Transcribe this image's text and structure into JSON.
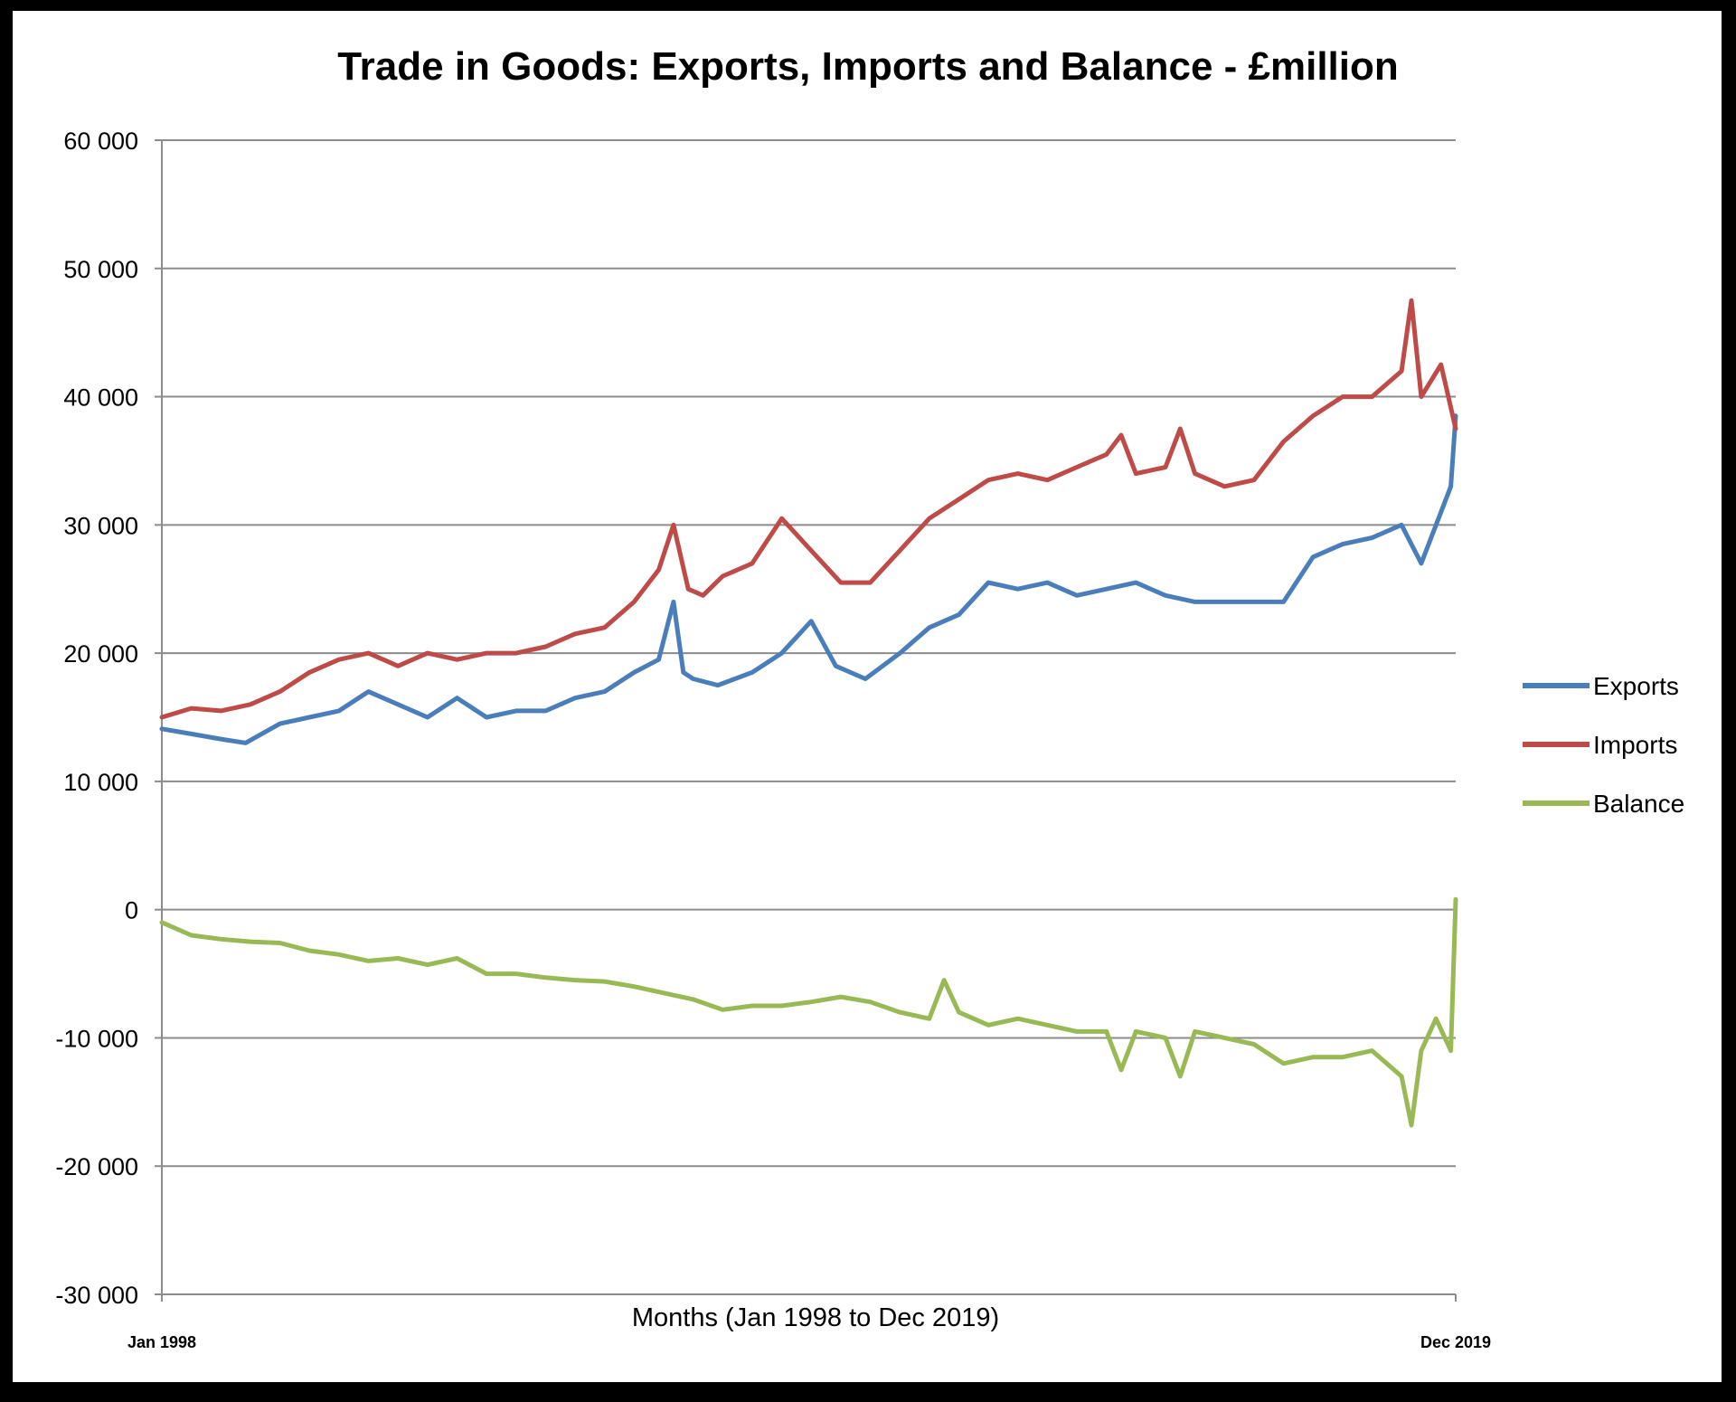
{
  "chart_data": {
    "type": "line",
    "title": "Trade in Goods: Exports, Imports and Balance - £million",
    "xlabel": "Months (Jan 1998 to Dec 2019)",
    "ylabel": "",
    "x_start_label": "Jan 1998",
    "x_end_label": "Dec 2019",
    "ylim": [
      -30000,
      60000
    ],
    "yticks": [
      -30000,
      -20000,
      -10000,
      0,
      10000,
      20000,
      30000,
      40000,
      50000,
      60000
    ],
    "ytick_labels": [
      "-30 000",
      "-20 000",
      "-10 000",
      "0",
      "10 000",
      "20 000",
      "30 000",
      "40 000",
      "50 000",
      "60 000"
    ],
    "grid": true,
    "legend": "right",
    "series": [
      {
        "name": "Exports",
        "color": "#4a7ebb",
        "points": [
          [
            "1998-01",
            14100
          ],
          [
            "1998-07",
            13700
          ],
          [
            "1999-01",
            13300
          ],
          [
            "1999-06",
            13000
          ],
          [
            "2000-01",
            14500
          ],
          [
            "2000-07",
            15000
          ],
          [
            "2001-01",
            15500
          ],
          [
            "2001-07",
            17000
          ],
          [
            "2002-01",
            16000
          ],
          [
            "2002-07",
            15000
          ],
          [
            "2003-01",
            16500
          ],
          [
            "2003-07",
            15000
          ],
          [
            "2004-01",
            15500
          ],
          [
            "2004-07",
            15500
          ],
          [
            "2005-01",
            16500
          ],
          [
            "2005-07",
            17000
          ],
          [
            "2006-01",
            18500
          ],
          [
            "2006-06",
            19500
          ],
          [
            "2006-09",
            24000
          ],
          [
            "2006-11",
            18500
          ],
          [
            "2007-01",
            18000
          ],
          [
            "2007-06",
            17500
          ],
          [
            "2008-01",
            18500
          ],
          [
            "2008-07",
            20000
          ],
          [
            "2009-01",
            22500
          ],
          [
            "2009-06",
            19000
          ],
          [
            "2009-12",
            18000
          ],
          [
            "2010-07",
            20000
          ],
          [
            "2011-01",
            22000
          ],
          [
            "2011-07",
            23000
          ],
          [
            "2012-01",
            25500
          ],
          [
            "2012-07",
            25000
          ],
          [
            "2013-01",
            25500
          ],
          [
            "2013-07",
            24500
          ],
          [
            "2014-01",
            25000
          ],
          [
            "2014-07",
            25500
          ],
          [
            "2015-01",
            24500
          ],
          [
            "2015-07",
            24000
          ],
          [
            "2016-01",
            24000
          ],
          [
            "2016-07",
            24000
          ],
          [
            "2017-01",
            24000
          ],
          [
            "2017-07",
            27500
          ],
          [
            "2018-01",
            28500
          ],
          [
            "2018-07",
            29000
          ],
          [
            "2019-01",
            30000
          ],
          [
            "2019-03",
            28500
          ],
          [
            "2019-05",
            27000
          ],
          [
            "2019-09",
            31000
          ],
          [
            "2019-11",
            33000
          ],
          [
            "2019-12",
            38500
          ]
        ]
      },
      {
        "name": "Imports",
        "color": "#be4b48",
        "points": [
          [
            "1998-01",
            15000
          ],
          [
            "1998-07",
            15700
          ],
          [
            "1999-01",
            15500
          ],
          [
            "1999-07",
            16000
          ],
          [
            "2000-01",
            17000
          ],
          [
            "2000-07",
            18500
          ],
          [
            "2001-01",
            19500
          ],
          [
            "2001-07",
            20000
          ],
          [
            "2002-01",
            19000
          ],
          [
            "2002-07",
            20000
          ],
          [
            "2003-01",
            19500
          ],
          [
            "2003-07",
            20000
          ],
          [
            "2004-01",
            20000
          ],
          [
            "2004-07",
            20500
          ],
          [
            "2005-01",
            21500
          ],
          [
            "2005-07",
            22000
          ],
          [
            "2006-01",
            24000
          ],
          [
            "2006-06",
            26500
          ],
          [
            "2006-09",
            30000
          ],
          [
            "2006-12",
            25000
          ],
          [
            "2007-03",
            24500
          ],
          [
            "2007-07",
            26000
          ],
          [
            "2008-01",
            27000
          ],
          [
            "2008-07",
            30500
          ],
          [
            "2009-01",
            28000
          ],
          [
            "2009-07",
            25500
          ],
          [
            "2010-01",
            25500
          ],
          [
            "2010-07",
            28000
          ],
          [
            "2011-01",
            30500
          ],
          [
            "2011-07",
            32000
          ],
          [
            "2012-01",
            33500
          ],
          [
            "2012-07",
            34000
          ],
          [
            "2013-01",
            33500
          ],
          [
            "2013-07",
            34500
          ],
          [
            "2014-01",
            35500
          ],
          [
            "2014-04",
            37000
          ],
          [
            "2014-07",
            34000
          ],
          [
            "2015-01",
            34500
          ],
          [
            "2015-04",
            37500
          ],
          [
            "2015-07",
            34000
          ],
          [
            "2016-01",
            33000
          ],
          [
            "2016-07",
            33500
          ],
          [
            "2017-01",
            36500
          ],
          [
            "2017-07",
            38500
          ],
          [
            "2018-01",
            40000
          ],
          [
            "2018-07",
            40000
          ],
          [
            "2019-01",
            42000
          ],
          [
            "2019-03",
            47500
          ],
          [
            "2019-05",
            40000
          ],
          [
            "2019-09",
            42500
          ],
          [
            "2019-12",
            37500
          ]
        ]
      },
      {
        "name": "Balance",
        "color": "#98b954",
        "points": [
          [
            "1998-01",
            -1000
          ],
          [
            "1998-07",
            -2000
          ],
          [
            "1999-01",
            -2300
          ],
          [
            "1999-07",
            -2500
          ],
          [
            "2000-01",
            -2600
          ],
          [
            "2000-07",
            -3200
          ],
          [
            "2001-01",
            -3500
          ],
          [
            "2001-07",
            -4000
          ],
          [
            "2002-01",
            -3800
          ],
          [
            "2002-07",
            -4300
          ],
          [
            "2003-01",
            -3800
          ],
          [
            "2003-07",
            -5000
          ],
          [
            "2004-01",
            -5000
          ],
          [
            "2004-07",
            -5300
          ],
          [
            "2005-01",
            -5500
          ],
          [
            "2005-07",
            -5600
          ],
          [
            "2006-01",
            -6000
          ],
          [
            "2006-07",
            -6500
          ],
          [
            "2007-01",
            -7000
          ],
          [
            "2007-07",
            -7800
          ],
          [
            "2008-01",
            -7500
          ],
          [
            "2008-07",
            -7500
          ],
          [
            "2009-01",
            -7200
          ],
          [
            "2009-07",
            -6800
          ],
          [
            "2010-01",
            -7200
          ],
          [
            "2010-07",
            -8000
          ],
          [
            "2011-01",
            -8500
          ],
          [
            "2011-04",
            -5500
          ],
          [
            "2011-07",
            -8000
          ],
          [
            "2012-01",
            -9000
          ],
          [
            "2012-07",
            -8500
          ],
          [
            "2013-01",
            -9000
          ],
          [
            "2013-07",
            -9500
          ],
          [
            "2014-01",
            -9500
          ],
          [
            "2014-04",
            -12500
          ],
          [
            "2014-07",
            -9500
          ],
          [
            "2015-01",
            -10000
          ],
          [
            "2015-04",
            -13000
          ],
          [
            "2015-07",
            -9500
          ],
          [
            "2016-01",
            -10000
          ],
          [
            "2016-07",
            -10500
          ],
          [
            "2017-01",
            -12000
          ],
          [
            "2017-07",
            -11500
          ],
          [
            "2018-01",
            -11500
          ],
          [
            "2018-07",
            -11000
          ],
          [
            "2019-01",
            -13000
          ],
          [
            "2019-03",
            -16800
          ],
          [
            "2019-05",
            -11000
          ],
          [
            "2019-08",
            -8500
          ],
          [
            "2019-11",
            -11000
          ],
          [
            "2019-12",
            800
          ]
        ]
      }
    ]
  }
}
